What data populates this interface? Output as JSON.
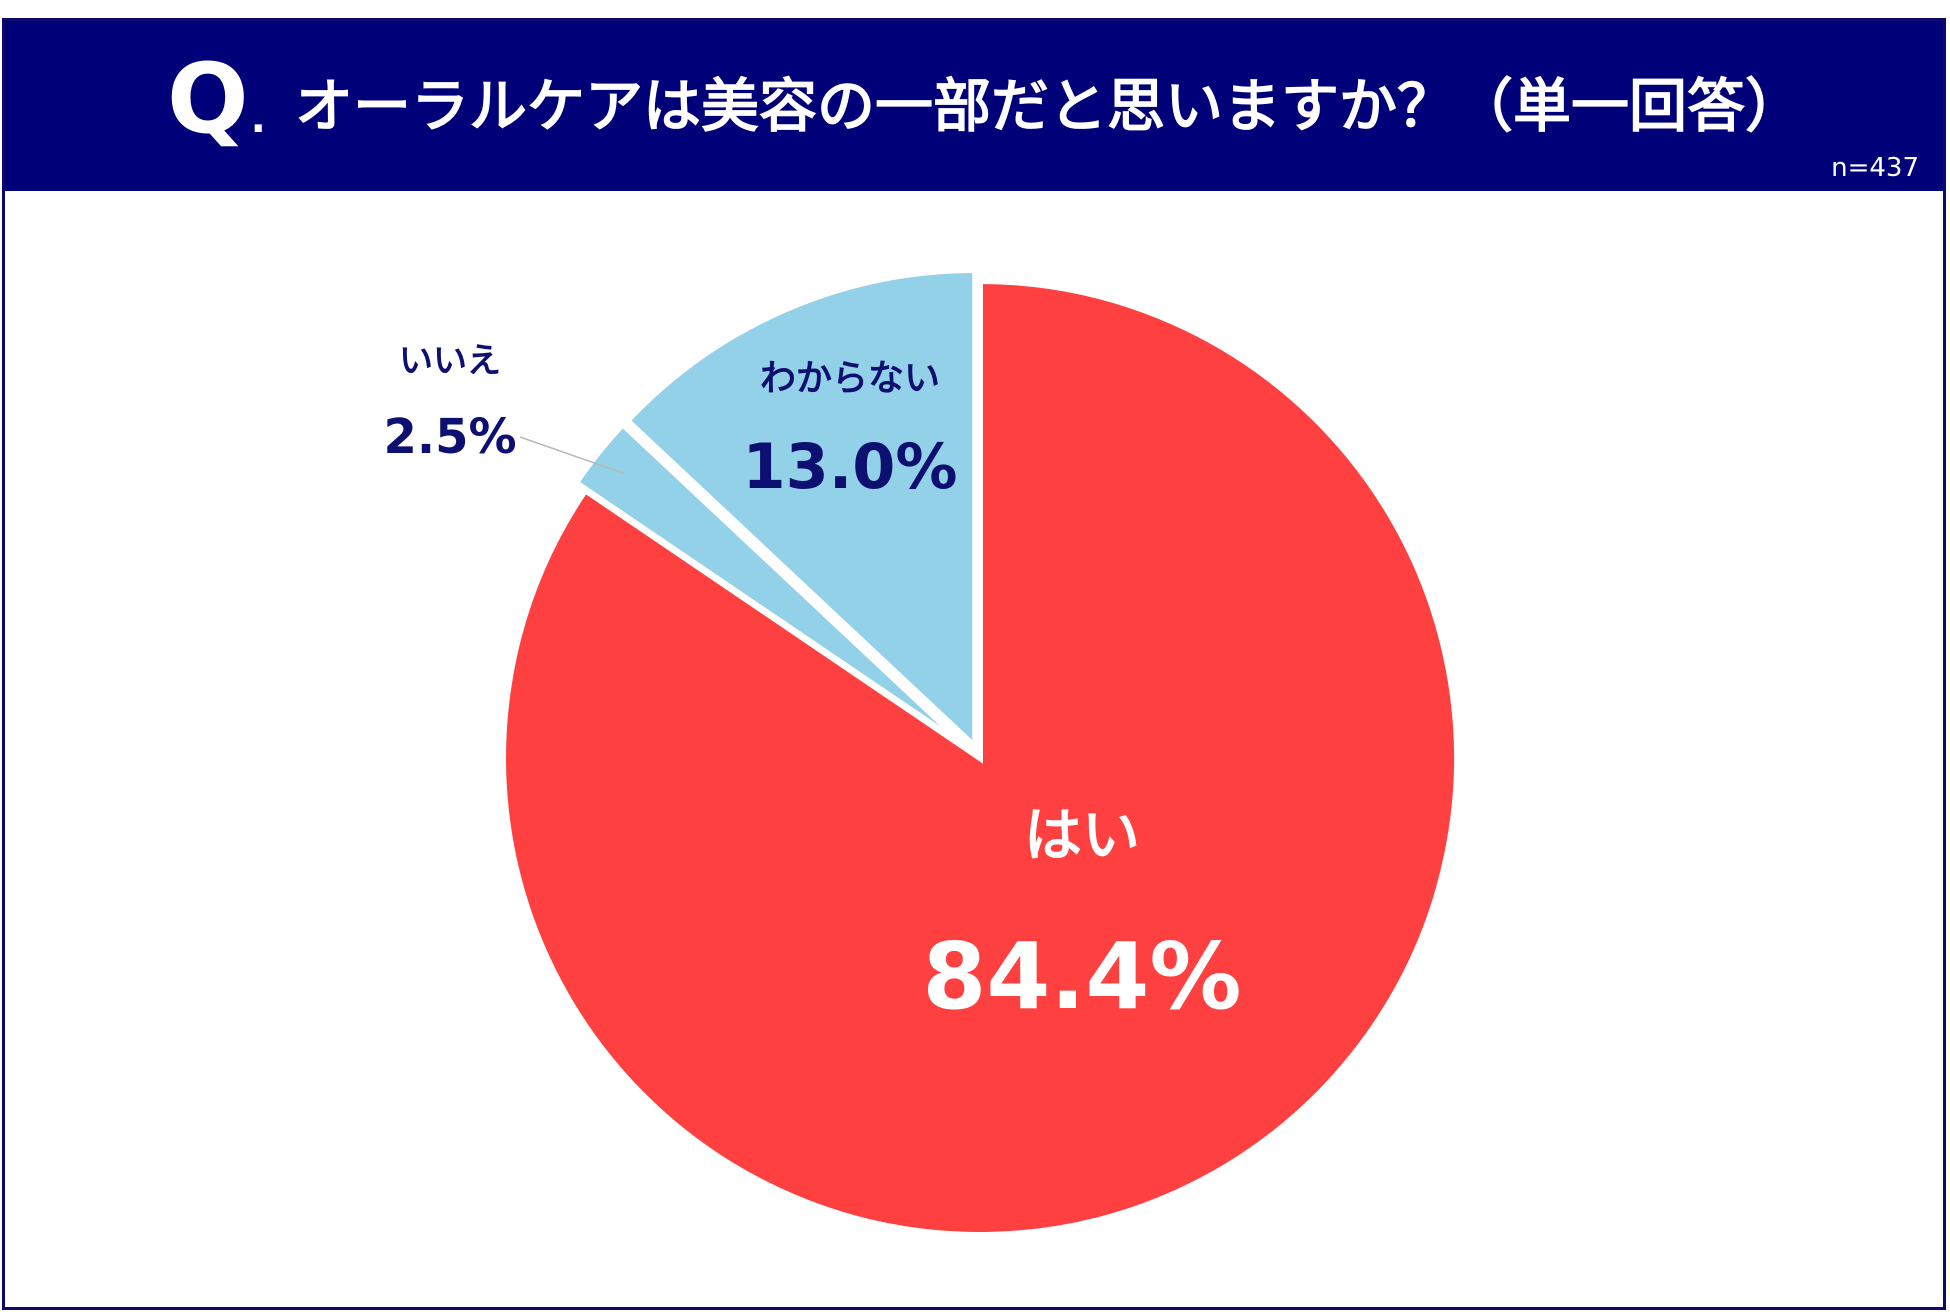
{
  "header": {
    "q_mark": "Q",
    "q_dot": ".",
    "question": "オーラルケアは美容の一部だと思いますか？（単一回答）",
    "sample_size": "n=437"
  },
  "colors": {
    "header_bg": "#000078",
    "frame_border": "#0a0a6e",
    "label_dark": "#0d1070",
    "slice_yes": "#ff4040",
    "slice_no": "#93d1e8",
    "slice_unknown": "#93d1e8",
    "slice_stroke": "#ffffff"
  },
  "chart_data": {
    "type": "pie",
    "start_angle": "12 o'clock",
    "direction": "clockwise",
    "categories": [
      "はい",
      "いいえ",
      "わからない"
    ],
    "values": [
      84.4,
      2.5,
      13.0
    ],
    "value_labels": [
      "84.4%",
      "2.5%",
      "13.0%"
    ],
    "unit": "%",
    "slice_colors": [
      "#ff4040",
      "#93d1e8",
      "#93d1e8"
    ],
    "label_colors": [
      "#ffffff",
      "#0d1070",
      "#0d1070"
    ],
    "exploded": [
      false,
      true,
      true
    ],
    "legend": "none"
  }
}
